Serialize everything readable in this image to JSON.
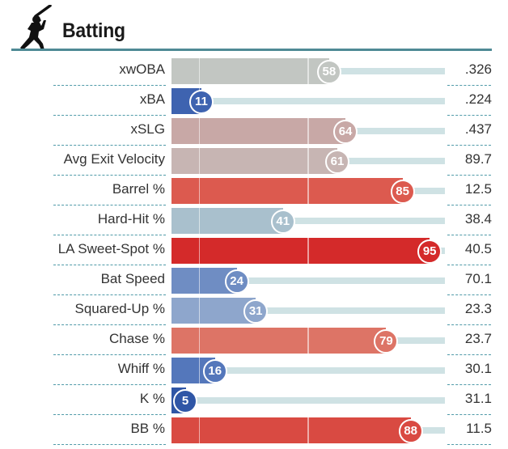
{
  "header": {
    "title": "Batting",
    "icon": "batter-silhouette-icon",
    "line_color": "#4f8a95"
  },
  "colors": {
    "track": "#cfe2e4",
    "divider": "#4f9aa8"
  },
  "chart_data": {
    "type": "bar",
    "xlim": [
      0,
      100
    ],
    "rows": [
      {
        "label": "xwOBA",
        "percentile": 58,
        "value": ".326",
        "color": "#c2c6c2"
      },
      {
        "label": "xBA",
        "percentile": 11,
        "value": ".224",
        "color": "#3e63b0"
      },
      {
        "label": "xSLG",
        "percentile": 64,
        "value": ".437",
        "color": "#c8a8a6"
      },
      {
        "label": "Avg Exit Velocity",
        "percentile": 61,
        "value": "89.7",
        "color": "#c7b5b3"
      },
      {
        "label": "Barrel %",
        "percentile": 85,
        "value": "12.5",
        "color": "#dc5a4f"
      },
      {
        "label": "Hard-Hit %",
        "percentile": 41,
        "value": "38.4",
        "color": "#a9c0cd"
      },
      {
        "label": "LA Sweet-Spot %",
        "percentile": 95,
        "value": "40.5",
        "color": "#d42a2a"
      },
      {
        "label": "Bat Speed",
        "percentile": 24,
        "value": "70.1",
        "color": "#6f8dc3"
      },
      {
        "label": "Squared-Up %",
        "percentile": 31,
        "value": "23.3",
        "color": "#8ea6cc"
      },
      {
        "label": "Chase %",
        "percentile": 79,
        "value": "23.7",
        "color": "#dd7466"
      },
      {
        "label": "Whiff %",
        "percentile": 16,
        "value": "30.1",
        "color": "#5477bb"
      },
      {
        "label": "K %",
        "percentile": 5,
        "value": "31.1",
        "color": "#2f56a6"
      },
      {
        "label": "BB %",
        "percentile": 88,
        "value": "11.5",
        "color": "#d94a42"
      }
    ]
  }
}
